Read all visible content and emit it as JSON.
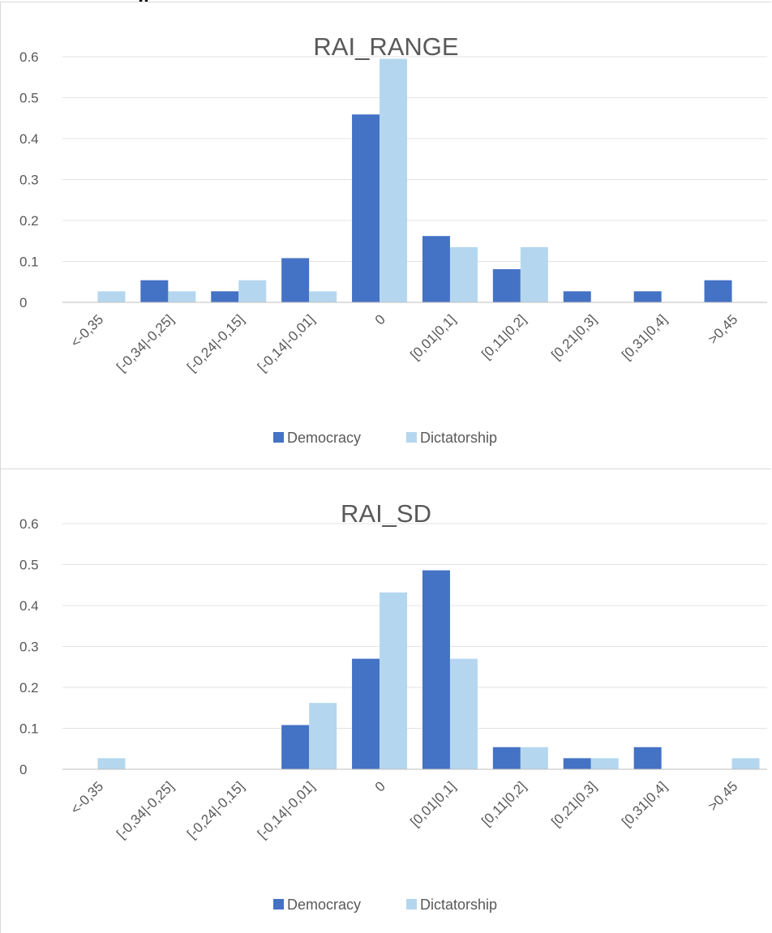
{
  "chart_data": [
    {
      "type": "bar",
      "title": "RAI_RANGE",
      "categories": [
        "<-0,35",
        "[-0,34|-0,25]",
        "[-0,24|-0,15]",
        "[-0,14|-0,01]",
        "0",
        "[0,01|0,1]",
        "[0,11|0,2]",
        "[0,21|0,3]",
        "[0,31|0,4]",
        ">0,45"
      ],
      "series": [
        {
          "name": "Democracy",
          "color": "#4472c4",
          "values": [
            0,
            0.054,
            0.027,
            0.108,
            0.459,
            0.162,
            0.081,
            0.027,
            0.027,
            0.054
          ]
        },
        {
          "name": "Dictatorship",
          "color": "#b4d7ef",
          "values": [
            0.027,
            0.027,
            0.054,
            0.027,
            0.595,
            0.135,
            0.135,
            0,
            0,
            0
          ]
        }
      ],
      "ylim": [
        0,
        0.6
      ],
      "yticks": [
        "0",
        "0.1",
        "0.2",
        "0.3",
        "0.4",
        "0.5",
        "0.6"
      ],
      "grid": true,
      "legend": "bottom"
    },
    {
      "type": "bar",
      "title": "RAI_SD",
      "categories": [
        "<-0,35",
        "[-0,34|-0,25]",
        "[-0,24|-0,15]",
        "[-0,14|-0,01]",
        "0",
        "[0,01|0,1]",
        "[0,11|0,2]",
        "[0,21|0,3]",
        "[0,31|0,4]",
        ">0,45"
      ],
      "series": [
        {
          "name": "Democracy",
          "color": "#4472c4",
          "values": [
            0,
            0,
            0,
            0.108,
            0.27,
            0.486,
            0.054,
            0.027,
            0.054,
            0
          ]
        },
        {
          "name": "Dictatorship",
          "color": "#b4d7ef",
          "values": [
            0.027,
            0,
            0,
            0.162,
            0.432,
            0.27,
            0.054,
            0.027,
            0,
            0.027
          ]
        }
      ],
      "ylim": [
        0,
        0.6
      ],
      "yticks": [
        "0",
        "0.1",
        "0.2",
        "0.3",
        "0.4",
        "0.5",
        "0.6"
      ],
      "grid": true,
      "legend": "bottom"
    }
  ]
}
